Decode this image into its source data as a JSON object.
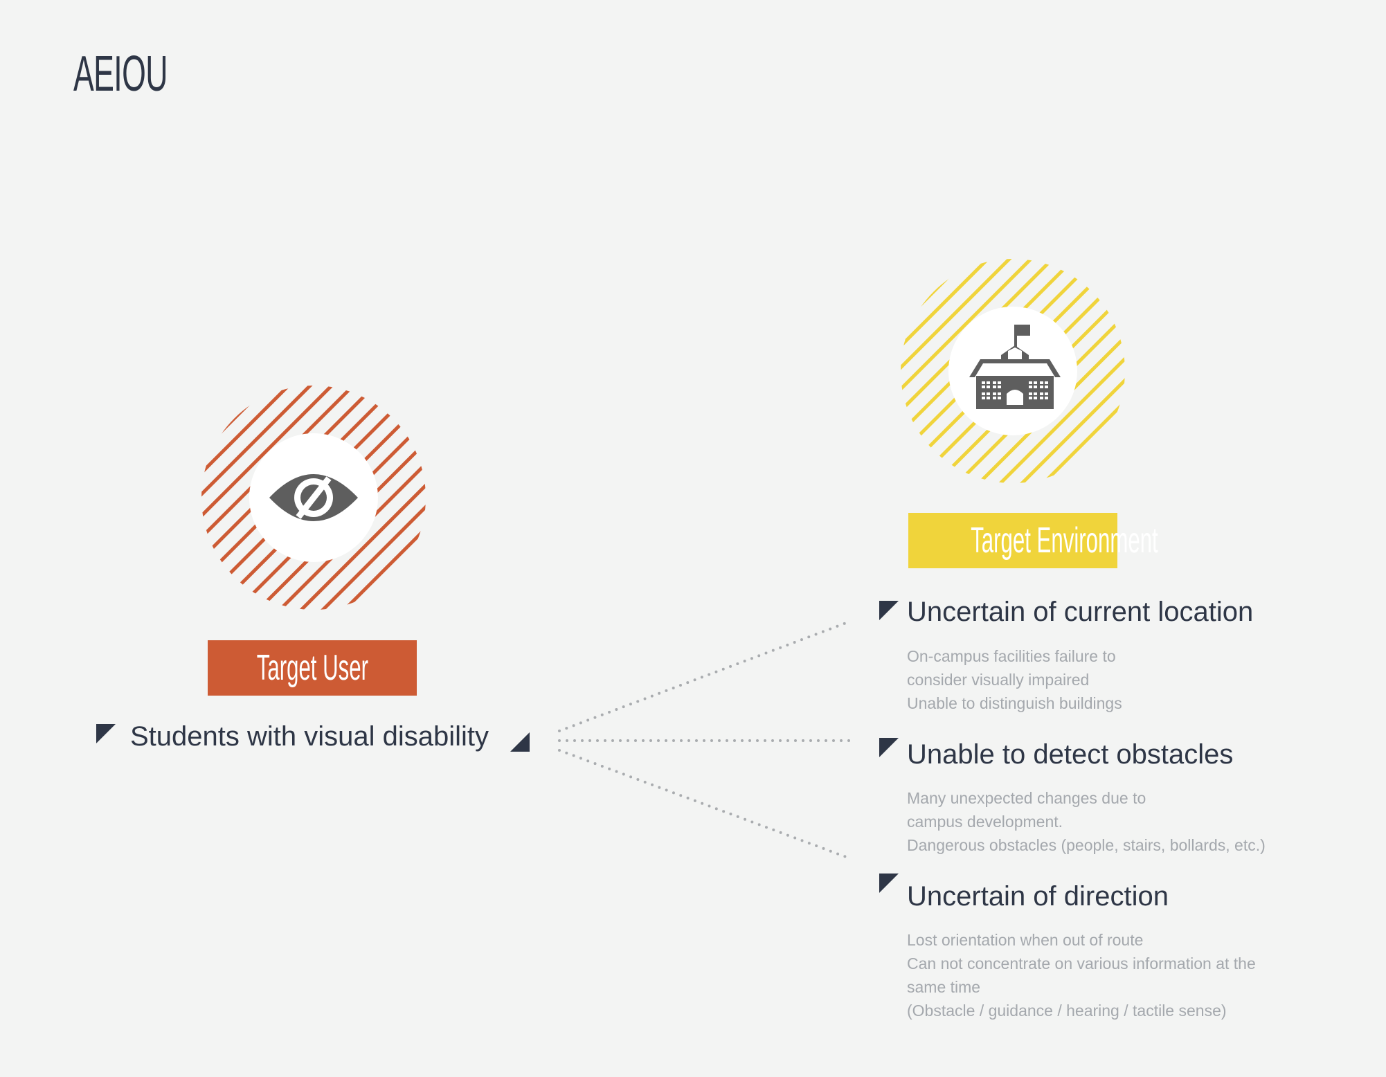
{
  "title": "AEIOU",
  "user": {
    "tag": "Target User",
    "label": "Students with visual disability",
    "icon": "eye-slash-icon",
    "color": "#cd5b34"
  },
  "environment": {
    "tag": "Target Environment",
    "icon": "school-building-icon",
    "color": "#f0d43b"
  },
  "issues": [
    {
      "heading": "Uncertain of current location",
      "lines": [
        "On-campus facilities failure to",
        "consider visually impaired",
        "Unable to distinguish buildings"
      ]
    },
    {
      "heading": "Unable to detect obstacles",
      "lines": [
        "Many unexpected changes due to",
        "campus development.",
        "Dangerous obstacles (people, stairs, bollards, etc.)"
      ]
    },
    {
      "heading": "Uncertain of direction",
      "lines": [
        "Lost orientation when out of route",
        "Can not concentrate on various information at the",
        "same time",
        "(Obstacle / guidance / hearing / tactile sense)"
      ]
    }
  ]
}
